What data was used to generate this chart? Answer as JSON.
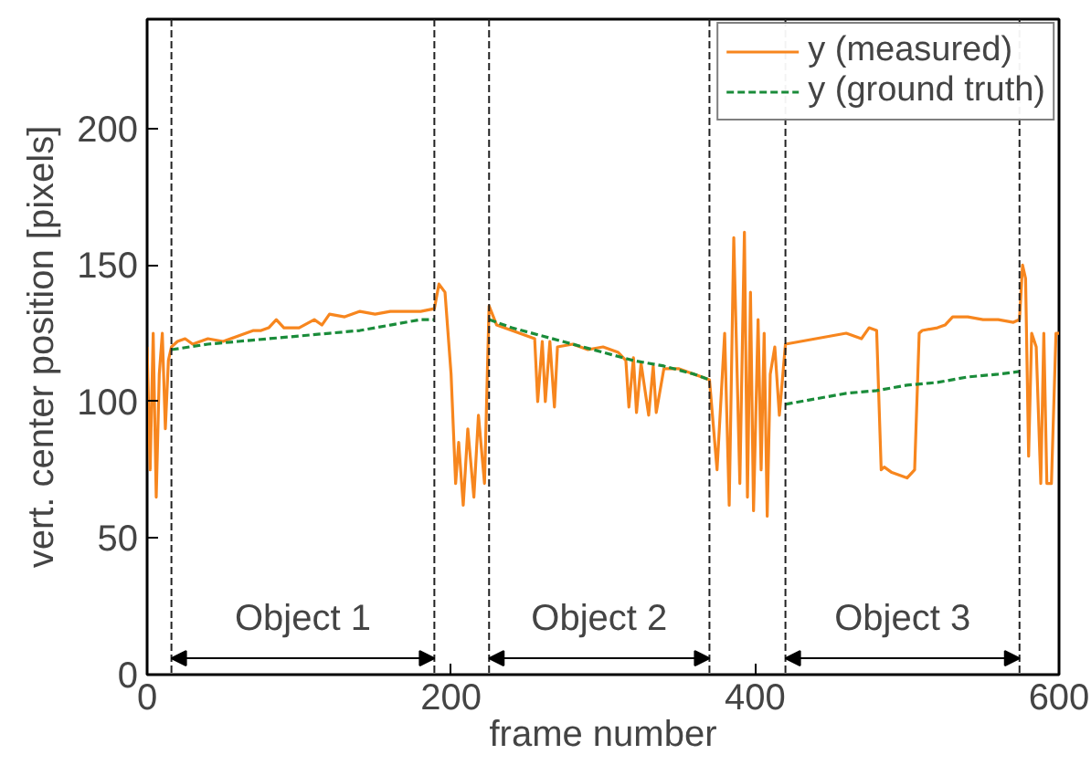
{
  "chart_data": {
    "type": "line",
    "xlabel": "frame number",
    "ylabel": "vert. center position [pixels]",
    "xlim": [
      0,
      600
    ],
    "ylim": [
      0,
      240
    ],
    "xticks": [
      0,
      200,
      400,
      600
    ],
    "yticks": [
      0,
      50,
      100,
      150,
      200
    ],
    "grid": false,
    "legend": "top right",
    "series": [
      {
        "name": "y (measured)",
        "color": "#f7861e",
        "line_style": "solid",
        "x": [
          0,
          2,
          4,
          6,
          8,
          10,
          12,
          14,
          16,
          20,
          25,
          30,
          40,
          50,
          60,
          70,
          75,
          80,
          85,
          90,
          100,
          110,
          115,
          120,
          130,
          135,
          140,
          150,
          160,
          170,
          180,
          189,
          192,
          196,
          200,
          203,
          205,
          208,
          211,
          215,
          218,
          222,
          225,
          230,
          240,
          250,
          255,
          257,
          260,
          262,
          265,
          268,
          270,
          280,
          290,
          300,
          310,
          315,
          317,
          320,
          322,
          325,
          330,
          333,
          335,
          340,
          345,
          350,
          360,
          370,
          375,
          380,
          383,
          386,
          390,
          393,
          395,
          397,
          399,
          402,
          404,
          406,
          408,
          410,
          413,
          416,
          420,
          430,
          440,
          450,
          460,
          470,
          475,
          480,
          483,
          485,
          490,
          500,
          505,
          508,
          510,
          520,
          525,
          530,
          540,
          550,
          560,
          570,
          574,
          576,
          578,
          580,
          582,
          585,
          588,
          590,
          592,
          595,
          598,
          600
        ],
        "values": [
          120,
          75,
          125,
          65,
          110,
          125,
          90,
          115,
          120,
          122,
          123,
          121,
          123,
          122,
          124,
          126,
          126,
          127,
          130,
          127,
          127,
          130,
          128,
          132,
          131,
          132,
          133,
          132,
          133,
          133,
          133,
          134,
          143,
          140,
          110,
          70,
          85,
          62,
          90,
          65,
          95,
          70,
          135,
          128,
          126,
          124,
          123,
          100,
          122,
          100,
          122,
          98,
          120,
          121,
          119,
          120,
          118,
          115,
          98,
          116,
          96,
          114,
          95,
          113,
          96,
          112,
          112,
          112,
          110,
          108,
          75,
          125,
          62,
          160,
          70,
          162,
          65,
          140,
          60,
          130,
          75,
          125,
          58,
          110,
          120,
          95,
          121,
          122,
          123,
          124,
          125,
          123,
          127,
          126,
          75,
          76,
          74,
          72,
          75,
          125,
          126,
          127,
          128,
          131,
          131,
          130,
          130,
          129,
          130,
          150,
          145,
          80,
          125,
          120,
          70,
          125,
          70,
          70,
          125,
          125
        ]
      },
      {
        "name": "y (ground truth)",
        "color": "#1a8c3a",
        "line_style": "dashed",
        "x": [
          16,
          40,
          60,
          80,
          100,
          120,
          140,
          160,
          180,
          189,
          190,
          225,
          240,
          260,
          280,
          300,
          320,
          340,
          360,
          370,
          371,
          420,
          440,
          460,
          480,
          500,
          520,
          540,
          560,
          574
        ],
        "values": [
          119,
          121,
          122,
          123,
          124,
          125,
          126,
          128,
          130,
          130,
          null,
          130,
          127,
          124,
          121,
          118,
          115,
          113,
          110,
          108,
          null,
          99,
          101,
          103,
          104,
          106,
          107,
          109,
          110,
          111
        ]
      }
    ],
    "ref_lines": [
      {
        "axis": "x",
        "value": 16,
        "color": "#222222",
        "line_style": "dashed"
      },
      {
        "axis": "x",
        "value": 189,
        "color": "#222222",
        "line_style": "dashed"
      },
      {
        "axis": "x",
        "value": 225,
        "color": "#222222",
        "line_style": "dashed"
      },
      {
        "axis": "x",
        "value": 370,
        "color": "#222222",
        "line_style": "dashed"
      },
      {
        "axis": "x",
        "value": 420,
        "color": "#222222",
        "line_style": "dashed"
      },
      {
        "axis": "x",
        "value": 574,
        "color": "#222222",
        "line_style": "dashed"
      }
    ],
    "annotations": [
      "Object 1",
      "Object 2",
      "Object 3"
    ]
  }
}
